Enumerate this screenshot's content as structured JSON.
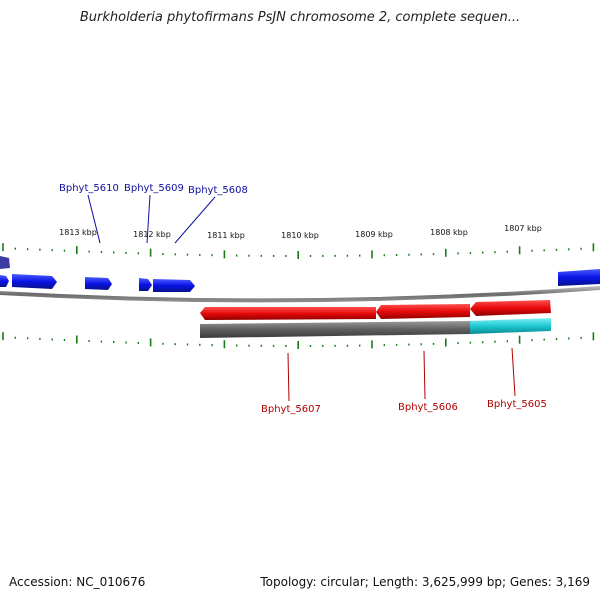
{
  "title": "Burkholderia phytofirmans PsJN chromosome 2, complete sequen...",
  "footer": {
    "accession": "Accession: NC_010676",
    "summary": "Topology: circular; Length: 3,625,999 bp; Genes: 3,169"
  },
  "colors": {
    "forward_gene": "#0a14e6",
    "reverse_gene": "#e60a0a",
    "backbone": "#7a7a7a",
    "track_gray": "#666666",
    "track_cyan": "#1ec8d2",
    "tick": "#1a7a1a",
    "forward_label": "#1010a0",
    "reverse_label": "#b00000"
  },
  "kbp_ticks": [
    "1813 kbp",
    "1812 kbp",
    "1811 kbp",
    "1810 kbp",
    "1809 kbp",
    "1808 kbp",
    "1807 kbp"
  ],
  "forward_genes": [
    {
      "label": "Bphyt_5610"
    },
    {
      "label": "Bphyt_5609"
    },
    {
      "label": "Bphyt_5608"
    }
  ],
  "reverse_genes": [
    {
      "label": "Bphyt_5607"
    },
    {
      "label": "Bphyt_5606"
    },
    {
      "label": "Bphyt_5605"
    }
  ]
}
